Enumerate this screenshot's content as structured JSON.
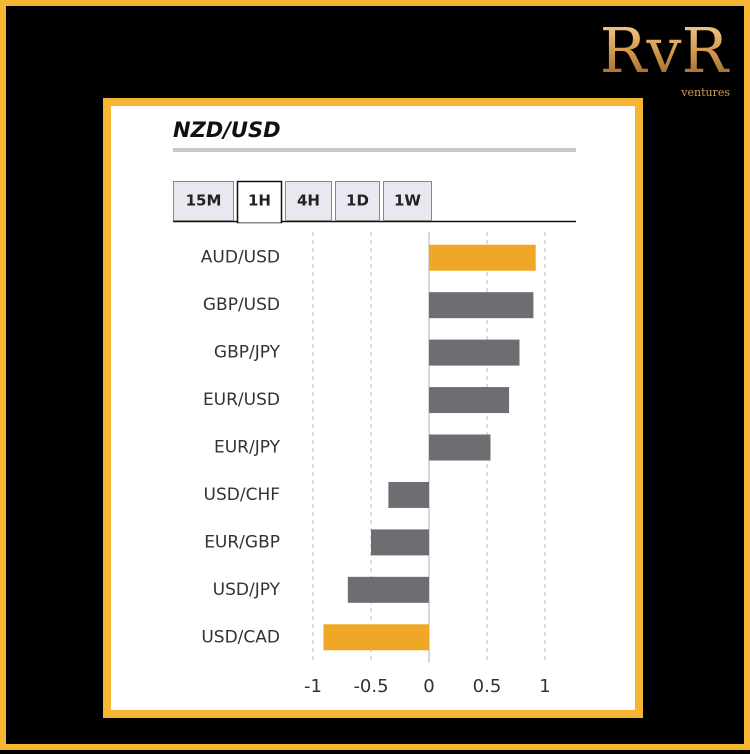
{
  "brand": {
    "name": "RvR",
    "tagline": "ventures"
  },
  "tabs": [
    "15M",
    "1H",
    "4H",
    "1D",
    "1W"
  ],
  "active_tab": 1,
  "chart_data": {
    "type": "hbar",
    "title": "NZD/USD",
    "categories": [
      "AUD/USD",
      "GBP/USD",
      "GBP/JPY",
      "EUR/USD",
      "EUR/JPY",
      "USD/CHF",
      "EUR/GBP",
      "USD/JPY",
      "USD/CAD"
    ],
    "values": [
      0.92,
      0.9,
      0.78,
      0.69,
      0.53,
      -0.35,
      -0.5,
      -0.7,
      -0.91
    ],
    "colors": [
      "#f0a726",
      "#6d6d72",
      "#6d6d72",
      "#6d6d72",
      "#6d6d72",
      "#6d6d72",
      "#6d6d72",
      "#6d6d72",
      "#f0a726"
    ],
    "xlim": [
      -1.1,
      1.1
    ],
    "xticks": [
      -1,
      -0.5,
      0,
      0.5,
      1
    ],
    "grid": true
  }
}
